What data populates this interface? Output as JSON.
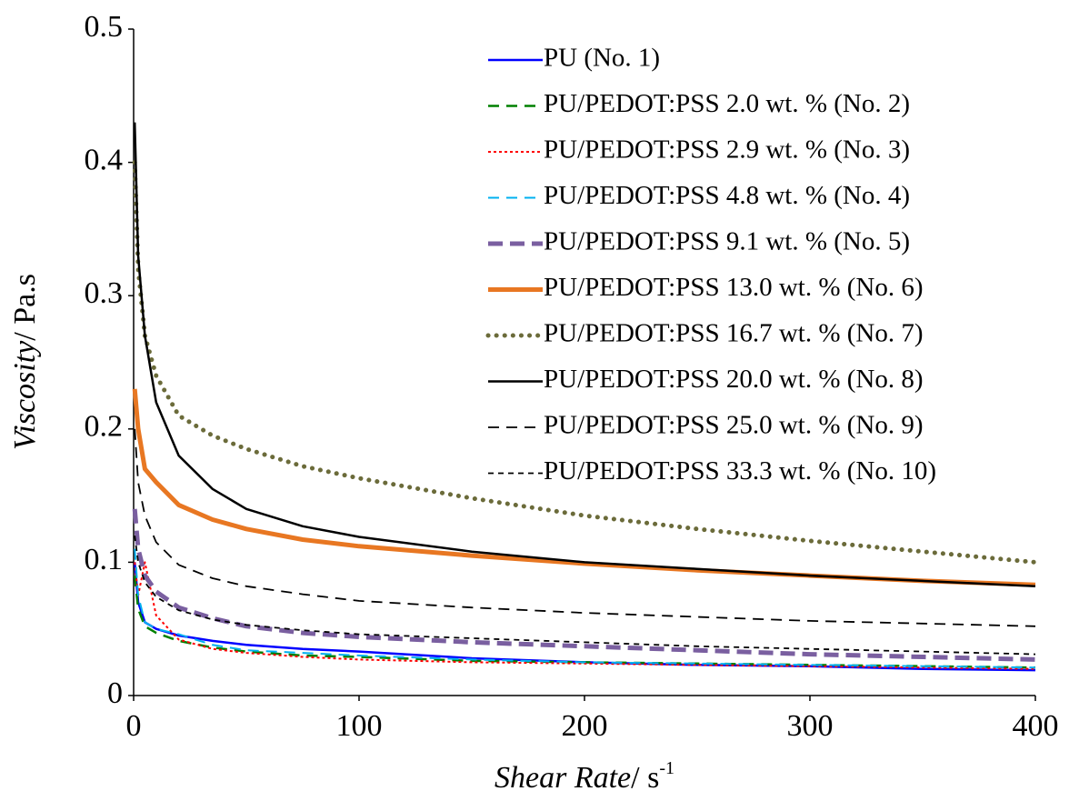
{
  "chart_data": {
    "type": "line",
    "xlabel": [
      "Shear Rate",
      "/ s",
      "-1"
    ],
    "ylabel": [
      "Viscosity",
      "/ Pa.s"
    ],
    "x": [
      0.5,
      2,
      5,
      10,
      20,
      35,
      50,
      75,
      100,
      150,
      200,
      250,
      300,
      350,
      400
    ],
    "xlim": [
      0,
      400
    ],
    "xticks": [
      0,
      100,
      200,
      300,
      400
    ],
    "ylim": [
      0,
      0.5
    ],
    "yticks": [
      0,
      0.1,
      0.2,
      0.3,
      0.4,
      0.5
    ],
    "grid": false,
    "legend": "upper right",
    "series": [
      {
        "name": "PU (No. 1)",
        "color": "#0000ff",
        "style": "solid",
        "width": 2.5,
        "values": [
          0.1,
          0.07,
          0.055,
          0.05,
          0.045,
          0.041,
          0.038,
          0.035,
          0.033,
          0.028,
          0.025,
          0.023,
          0.022,
          0.02,
          0.019
        ]
      },
      {
        "name": "PU/PEDOT:PSS 2.0 wt. % (No. 2)",
        "color": "#008000",
        "style": "dashed",
        "width": 2.5,
        "values": [
          0.09,
          0.065,
          0.052,
          0.047,
          0.041,
          0.036,
          0.033,
          0.03,
          0.029,
          0.026,
          0.025,
          0.024,
          0.023,
          0.022,
          0.021
        ]
      },
      {
        "name": "PU/PEDOT:PSS 2.9 wt. % (No. 3)",
        "color": "#ff0000",
        "style": "dotted",
        "width": 2,
        "values": [
          0.1,
          0.075,
          0.1,
          0.06,
          0.042,
          0.035,
          0.032,
          0.029,
          0.027,
          0.025,
          0.024,
          0.023,
          0.022,
          0.021,
          0.02
        ]
      },
      {
        "name": "PU/PEDOT:PSS 4.8 wt. % (No. 4)",
        "color": "#00b0f0",
        "style": "dashed",
        "width": 2,
        "values": [
          0.11,
          0.075,
          0.055,
          0.05,
          0.046,
          0.038,
          0.034,
          0.032,
          0.03,
          0.027,
          0.025,
          0.024,
          0.023,
          0.022,
          0.021
        ]
      },
      {
        "name": "PU/PEDOT:PSS 9.1 wt. % (No. 5)",
        "color": "#7a5fa0",
        "style": "longdash",
        "width": 5,
        "values": [
          0.14,
          0.11,
          0.09,
          0.078,
          0.066,
          0.058,
          0.052,
          0.047,
          0.044,
          0.04,
          0.037,
          0.034,
          0.031,
          0.029,
          0.027
        ]
      },
      {
        "name": "PU/PEDOT:PSS 13.0 wt. % (No. 6)",
        "color": "#e87722",
        "style": "solid",
        "width": 5,
        "values": [
          0.23,
          0.2,
          0.17,
          0.16,
          0.143,
          0.132,
          0.125,
          0.117,
          0.112,
          0.105,
          0.099,
          0.094,
          0.09,
          0.086,
          0.083
        ]
      },
      {
        "name": "PU/PEDOT:PSS 16.7 wt. % (No. 7)",
        "color": "#6b6b3a",
        "style": "roundDot",
        "width": 5,
        "values": [
          0.4,
          0.32,
          0.27,
          0.24,
          0.21,
          0.195,
          0.185,
          0.172,
          0.163,
          0.148,
          0.135,
          0.125,
          0.116,
          0.108,
          0.1
        ]
      },
      {
        "name": "PU/PEDOT:PSS 20.0 wt. % (No. 8)",
        "color": "#000000",
        "style": "solid",
        "width": 2.5,
        "values": [
          0.43,
          0.33,
          0.27,
          0.22,
          0.18,
          0.155,
          0.14,
          0.127,
          0.119,
          0.108,
          0.1,
          0.095,
          0.09,
          0.086,
          0.082
        ]
      },
      {
        "name": "PU/PEDOT:PSS 25.0 wt. % (No. 9)",
        "color": "#000000",
        "style": "dashed",
        "width": 1.8,
        "values": [
          0.2,
          0.16,
          0.135,
          0.115,
          0.098,
          0.088,
          0.082,
          0.076,
          0.071,
          0.066,
          0.062,
          0.059,
          0.056,
          0.054,
          0.052
        ]
      },
      {
        "name": "PU/PEDOT:PSS 33.3 wt. % (No. 10)",
        "color": "#000000",
        "style": "shortdash",
        "width": 1.8,
        "values": [
          0.12,
          0.1,
          0.085,
          0.074,
          0.064,
          0.057,
          0.053,
          0.049,
          0.046,
          0.043,
          0.04,
          0.037,
          0.035,
          0.033,
          0.031
        ]
      }
    ]
  }
}
